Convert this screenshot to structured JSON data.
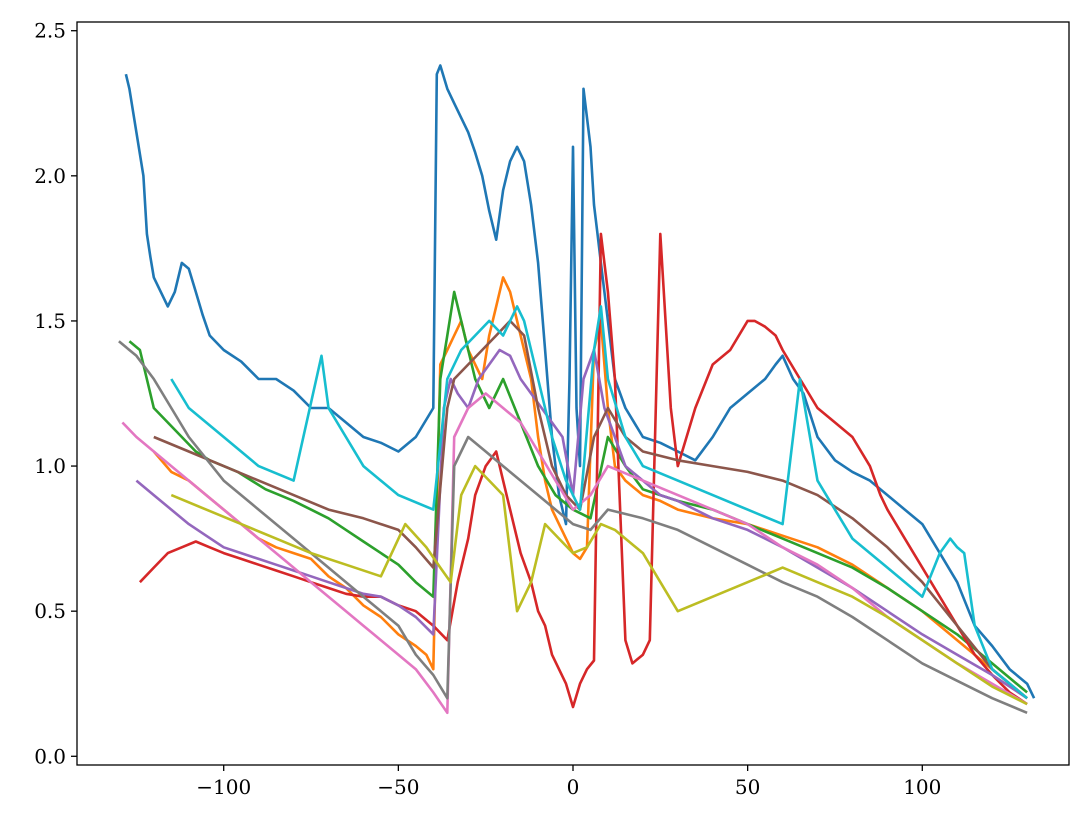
{
  "chart_data": {
    "type": "line",
    "title": "",
    "xlabel": "",
    "ylabel": "",
    "xlim": [
      -142,
      142
    ],
    "ylim": [
      -0.03,
      2.53
    ],
    "x_ticks": [
      -100,
      -50,
      0,
      50,
      100
    ],
    "x_tick_labels": [
      "−100",
      "−50",
      "0",
      "50",
      "100"
    ],
    "y_ticks": [
      0.0,
      0.5,
      1.0,
      1.5,
      2.0,
      2.5
    ],
    "y_tick_labels": [
      "0.0",
      "0.5",
      "1.0",
      "1.5",
      "2.0",
      "2.5"
    ],
    "grid": false,
    "legend": false,
    "palette": [
      "#1f77b4",
      "#ff7f0e",
      "#2ca02c",
      "#d62728",
      "#9467bd",
      "#8c564b",
      "#e377c2",
      "#7f7f7f",
      "#bcbd22",
      "#17becf"
    ],
    "series": [
      {
        "color": "#1f77b4",
        "x": [
          -128,
          -127,
          -125,
          -123,
          -122,
          -121,
          -120,
          -118,
          -116,
          -114,
          -112,
          -110,
          -108,
          -106,
          -104,
          -100,
          -95,
          -90,
          -85,
          -80,
          -75,
          -70,
          -65,
          -60,
          -55,
          -50,
          -45,
          -40,
          -39,
          -38,
          -36,
          -34,
          -32,
          -30,
          -28,
          -26,
          -24,
          -22,
          -20,
          -18,
          -16,
          -14,
          -12,
          -10,
          -8,
          -6,
          -4,
          -2,
          -1,
          0,
          1,
          2,
          3,
          4,
          5,
          6,
          7,
          8,
          10,
          12,
          15,
          20,
          25,
          30,
          35,
          40,
          45,
          50,
          55,
          58,
          60,
          63,
          66,
          70,
          75,
          80,
          85,
          90,
          95,
          100,
          105,
          110,
          115,
          120,
          125,
          130,
          132
        ],
        "y": [
          2.35,
          2.3,
          2.15,
          2.0,
          1.8,
          1.72,
          1.65,
          1.6,
          1.55,
          1.6,
          1.7,
          1.68,
          1.6,
          1.52,
          1.45,
          1.4,
          1.36,
          1.3,
          1.3,
          1.26,
          1.2,
          1.2,
          1.15,
          1.1,
          1.08,
          1.05,
          1.1,
          1.2,
          2.35,
          2.38,
          2.3,
          2.25,
          2.2,
          2.15,
          2.08,
          2.0,
          1.88,
          1.78,
          1.95,
          2.05,
          2.1,
          2.05,
          1.9,
          1.7,
          1.4,
          1.1,
          0.9,
          0.8,
          1.3,
          2.1,
          1.2,
          1.0,
          2.3,
          2.2,
          2.1,
          1.9,
          1.8,
          1.7,
          1.5,
          1.3,
          1.2,
          1.1,
          1.08,
          1.05,
          1.02,
          1.1,
          1.2,
          1.25,
          1.3,
          1.35,
          1.38,
          1.3,
          1.25,
          1.1,
          1.02,
          0.98,
          0.95,
          0.9,
          0.85,
          0.8,
          0.7,
          0.6,
          0.45,
          0.38,
          0.3,
          0.25,
          0.2
        ]
      },
      {
        "color": "#ff7f0e",
        "x": [
          -120,
          -115,
          -110,
          -105,
          -100,
          -95,
          -90,
          -85,
          -80,
          -75,
          -70,
          -65,
          -60,
          -55,
          -50,
          -45,
          -42,
          -40,
          -38,
          -36,
          -34,
          -32,
          -30,
          -28,
          -26,
          -24,
          -22,
          -20,
          -18,
          -16,
          -14,
          -12,
          -10,
          -8,
          -6,
          -4,
          -2,
          0,
          2,
          4,
          6,
          8,
          10,
          12,
          15,
          20,
          25,
          30,
          40,
          50,
          60,
          70,
          80,
          90,
          100,
          110,
          120,
          130
        ],
        "y": [
          1.05,
          0.98,
          0.95,
          0.9,
          0.85,
          0.8,
          0.75,
          0.72,
          0.7,
          0.68,
          0.62,
          0.58,
          0.52,
          0.48,
          0.42,
          0.38,
          0.35,
          0.3,
          1.35,
          1.4,
          1.45,
          1.5,
          1.4,
          1.35,
          1.3,
          1.45,
          1.55,
          1.65,
          1.6,
          1.5,
          1.4,
          1.3,
          1.1,
          0.95,
          0.85,
          0.8,
          0.75,
          0.7,
          0.68,
          0.72,
          1.4,
          1.5,
          1.2,
          1.0,
          0.95,
          0.9,
          0.88,
          0.85,
          0.82,
          0.8,
          0.76,
          0.72,
          0.66,
          0.58,
          0.5,
          0.4,
          0.3,
          0.2
        ]
      },
      {
        "color": "#2ca02c",
        "x": [
          -127,
          -124,
          -120,
          -116,
          -112,
          -108,
          -104,
          -100,
          -96,
          -92,
          -88,
          -84,
          -80,
          -75,
          -70,
          -65,
          -60,
          -55,
          -50,
          -45,
          -40,
          -38,
          -36,
          -34,
          -32,
          -30,
          -28,
          -26,
          -24,
          -22,
          -20,
          -15,
          -10,
          -5,
          0,
          5,
          10,
          15,
          20,
          25,
          30,
          40,
          50,
          60,
          70,
          80,
          90,
          100,
          110,
          120,
          130
        ],
        "y": [
          1.43,
          1.4,
          1.2,
          1.15,
          1.1,
          1.05,
          1.02,
          1.0,
          0.98,
          0.95,
          0.92,
          0.9,
          0.88,
          0.85,
          0.82,
          0.78,
          0.74,
          0.7,
          0.66,
          0.6,
          0.55,
          1.3,
          1.45,
          1.6,
          1.5,
          1.4,
          1.3,
          1.25,
          1.2,
          1.25,
          1.3,
          1.15,
          1.0,
          0.9,
          0.85,
          0.82,
          1.1,
          1.0,
          0.92,
          0.9,
          0.88,
          0.85,
          0.8,
          0.75,
          0.7,
          0.65,
          0.58,
          0.5,
          0.42,
          0.32,
          0.22
        ]
      },
      {
        "color": "#d62728",
        "x": [
          -124,
          -120,
          -116,
          -112,
          -108,
          -104,
          -100,
          -95,
          -90,
          -85,
          -80,
          -75,
          -70,
          -65,
          -60,
          -55,
          -50,
          -45,
          -40,
          -36,
          -33,
          -30,
          -28,
          -25,
          -22,
          -20,
          -18,
          -15,
          -12,
          -10,
          -8,
          -6,
          -4,
          -2,
          0,
          2,
          4,
          6,
          8,
          10,
          12,
          15,
          17,
          20,
          22,
          25,
          28,
          30,
          35,
          40,
          45,
          50,
          52,
          55,
          58,
          60,
          65,
          70,
          75,
          80,
          85,
          88,
          90,
          95,
          100,
          105,
          110,
          115,
          120,
          125,
          130
        ],
        "y": [
          0.6,
          0.65,
          0.7,
          0.72,
          0.74,
          0.72,
          0.7,
          0.68,
          0.66,
          0.64,
          0.62,
          0.6,
          0.58,
          0.56,
          0.55,
          0.55,
          0.52,
          0.5,
          0.45,
          0.4,
          0.6,
          0.75,
          0.9,
          1.0,
          1.05,
          0.95,
          0.85,
          0.7,
          0.6,
          0.5,
          0.45,
          0.35,
          0.3,
          0.25,
          0.17,
          0.25,
          0.3,
          0.33,
          1.8,
          1.6,
          1.3,
          0.4,
          0.32,
          0.35,
          0.4,
          1.8,
          1.2,
          1.0,
          1.2,
          1.35,
          1.4,
          1.5,
          1.5,
          1.48,
          1.45,
          1.4,
          1.3,
          1.2,
          1.15,
          1.1,
          1.0,
          0.9,
          0.85,
          0.75,
          0.65,
          0.55,
          0.45,
          0.35,
          0.28,
          0.22,
          0.18
        ]
      },
      {
        "color": "#9467bd",
        "x": [
          -125,
          -120,
          -115,
          -110,
          -105,
          -100,
          -95,
          -90,
          -85,
          -80,
          -75,
          -70,
          -65,
          -60,
          -55,
          -50,
          -45,
          -40,
          -37,
          -35,
          -33,
          -30,
          -27,
          -24,
          -21,
          -18,
          -15,
          -12,
          -9,
          -6,
          -3,
          0,
          3,
          6,
          9,
          12,
          15,
          20,
          25,
          30,
          40,
          50,
          60,
          70,
          80,
          90,
          100,
          110,
          120,
          130
        ],
        "y": [
          0.95,
          0.9,
          0.85,
          0.8,
          0.76,
          0.72,
          0.7,
          0.68,
          0.66,
          0.64,
          0.62,
          0.6,
          0.58,
          0.56,
          0.55,
          0.52,
          0.48,
          0.42,
          1.2,
          1.3,
          1.25,
          1.2,
          1.3,
          1.35,
          1.4,
          1.38,
          1.3,
          1.25,
          1.2,
          1.15,
          1.1,
          0.9,
          1.3,
          1.4,
          1.2,
          1.1,
          1.0,
          0.95,
          0.9,
          0.88,
          0.82,
          0.78,
          0.72,
          0.65,
          0.58,
          0.5,
          0.42,
          0.35,
          0.28,
          0.2
        ]
      },
      {
        "color": "#8c564b",
        "x": [
          -120,
          -110,
          -100,
          -90,
          -80,
          -70,
          -60,
          -50,
          -45,
          -40,
          -36,
          -34,
          -30,
          -26,
          -22,
          -18,
          -14,
          -10,
          -6,
          -2,
          2,
          6,
          10,
          15,
          20,
          30,
          40,
          50,
          60,
          70,
          80,
          90,
          100,
          110,
          120,
          130
        ],
        "y": [
          1.1,
          1.05,
          1.0,
          0.95,
          0.9,
          0.85,
          0.82,
          0.78,
          0.72,
          0.65,
          1.2,
          1.3,
          1.35,
          1.4,
          1.45,
          1.5,
          1.45,
          1.2,
          1.0,
          0.9,
          0.85,
          1.1,
          1.2,
          1.1,
          1.05,
          1.02,
          1.0,
          0.98,
          0.95,
          0.9,
          0.82,
          0.72,
          0.6,
          0.45,
          0.3,
          0.2
        ]
      },
      {
        "color": "#e377c2",
        "x": [
          -129,
          -125,
          -120,
          -115,
          -110,
          -105,
          -100,
          -95,
          -90,
          -85,
          -80,
          -75,
          -70,
          -65,
          -60,
          -55,
          -50,
          -45,
          -40,
          -36,
          -34,
          -30,
          -25,
          -20,
          -15,
          -10,
          -5,
          0,
          5,
          10,
          20,
          30,
          40,
          50,
          60,
          70,
          80,
          90,
          100,
          110,
          120,
          130
        ],
        "y": [
          1.15,
          1.1,
          1.05,
          1.0,
          0.95,
          0.9,
          0.85,
          0.8,
          0.75,
          0.7,
          0.65,
          0.6,
          0.55,
          0.5,
          0.45,
          0.4,
          0.35,
          0.3,
          0.22,
          0.15,
          1.1,
          1.2,
          1.25,
          1.2,
          1.15,
          1.05,
          0.95,
          0.85,
          0.9,
          1.0,
          0.95,
          0.9,
          0.85,
          0.8,
          0.72,
          0.66,
          0.58,
          0.48,
          0.4,
          0.32,
          0.25,
          0.18
        ]
      },
      {
        "color": "#7f7f7f",
        "x": [
          -130,
          -125,
          -120,
          -115,
          -110,
          -100,
          -90,
          -80,
          -70,
          -60,
          -50,
          -45,
          -40,
          -36,
          -34,
          -30,
          -25,
          -20,
          -15,
          -10,
          -5,
          0,
          5,
          10,
          20,
          30,
          40,
          50,
          60,
          70,
          80,
          90,
          100,
          110,
          120,
          130
        ],
        "y": [
          1.43,
          1.38,
          1.3,
          1.2,
          1.1,
          0.95,
          0.85,
          0.75,
          0.65,
          0.55,
          0.45,
          0.35,
          0.28,
          0.2,
          1.0,
          1.1,
          1.05,
          1.0,
          0.95,
          0.9,
          0.85,
          0.8,
          0.78,
          0.85,
          0.82,
          0.78,
          0.72,
          0.66,
          0.6,
          0.55,
          0.48,
          0.4,
          0.32,
          0.26,
          0.2,
          0.15
        ]
      },
      {
        "color": "#bcbd22",
        "x": [
          -115,
          -105,
          -95,
          -85,
          -75,
          -65,
          -55,
          -48,
          -42,
          -38,
          -35,
          -32,
          -28,
          -24,
          -20,
          -16,
          -12,
          -8,
          -4,
          0,
          4,
          8,
          12,
          20,
          30,
          40,
          50,
          60,
          70,
          80,
          90,
          100,
          110,
          120,
          130
        ],
        "y": [
          0.9,
          0.85,
          0.8,
          0.75,
          0.7,
          0.66,
          0.62,
          0.8,
          0.72,
          0.65,
          0.6,
          0.9,
          1.0,
          0.95,
          0.9,
          0.5,
          0.6,
          0.8,
          0.75,
          0.7,
          0.72,
          0.8,
          0.78,
          0.7,
          0.5,
          0.55,
          0.6,
          0.65,
          0.6,
          0.55,
          0.48,
          0.4,
          0.32,
          0.24,
          0.18
        ]
      },
      {
        "color": "#17becf",
        "x": [
          -115,
          -110,
          -100,
          -90,
          -80,
          -72,
          -70,
          -60,
          -50,
          -40,
          -36,
          -32,
          -28,
          -24,
          -20,
          -16,
          -14,
          -10,
          -6,
          -2,
          2,
          6,
          8,
          10,
          15,
          20,
          30,
          40,
          50,
          60,
          65,
          70,
          80,
          90,
          100,
          105,
          108,
          110,
          112,
          115,
          120,
          130
        ],
        "y": [
          1.3,
          1.2,
          1.1,
          1.0,
          0.95,
          1.38,
          1.2,
          1.0,
          0.9,
          0.85,
          1.3,
          1.4,
          1.45,
          1.5,
          1.45,
          1.55,
          1.5,
          1.3,
          1.1,
          0.95,
          0.85,
          1.4,
          1.55,
          1.3,
          1.1,
          1.0,
          0.95,
          0.9,
          0.85,
          0.8,
          1.3,
          0.95,
          0.75,
          0.65,
          0.55,
          0.7,
          0.75,
          0.72,
          0.7,
          0.45,
          0.3,
          0.2
        ]
      }
    ]
  }
}
